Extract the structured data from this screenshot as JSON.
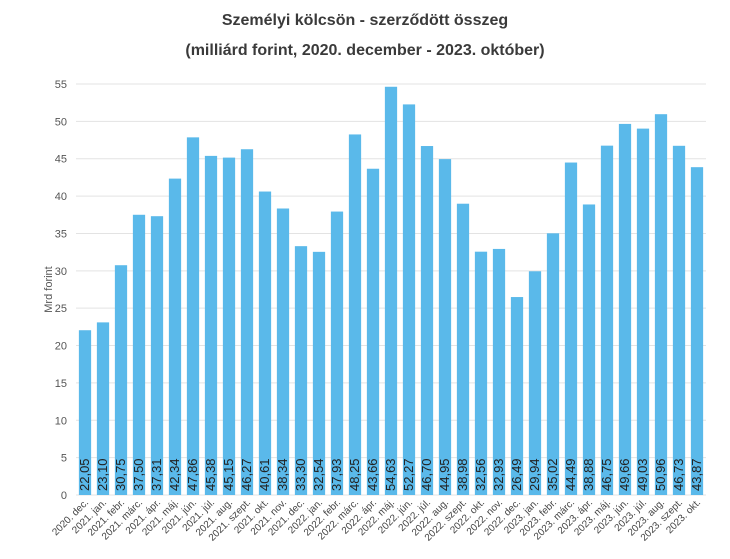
{
  "chart_data": {
    "type": "bar",
    "title_line1": "Személyi kölcsön - szerződött összeg",
    "title_line2": "(milliárd forint, 2020. december - 2023. október)",
    "xlabel": "",
    "ylabel": "Mrd forint",
    "ylim": [
      0,
      55
    ],
    "yticks": [
      "0",
      "5",
      "10",
      "15",
      "20",
      "25",
      "30",
      "35",
      "40",
      "45",
      "50",
      "55"
    ],
    "grid": "horizontal",
    "bar_color": "#5ab9ea",
    "categories": [
      "2020. dec.",
      "2021. jan.",
      "2021. febr.",
      "2021. márc.",
      "2021. ápr.",
      "2021. máj.",
      "2021. jún.",
      "2021. júl.",
      "2021. aug.",
      "2021. szept.",
      "2021. okt.",
      "2021. nov.",
      "2021. dec.",
      "2022. jan.",
      "2022. febr.",
      "2022. márc.",
      "2022. ápr.",
      "2022. máj.",
      "2022. jún.",
      "2022. júl.",
      "2022. aug.",
      "2022. szept.",
      "2022. okt.",
      "2022. nov.",
      "2022. dec.",
      "2023. jan.",
      "2023. febr.",
      "2023. márc.",
      "2023. ápr.",
      "2023. máj.",
      "2023. jún.",
      "2023. júl.",
      "2023. aug.",
      "2023. szept.",
      "2023. okt."
    ],
    "values": [
      22.05,
      23.1,
      30.75,
      37.5,
      37.31,
      42.34,
      47.86,
      45.38,
      45.15,
      46.27,
      40.61,
      38.34,
      33.3,
      32.54,
      37.93,
      48.25,
      43.66,
      54.63,
      52.27,
      46.7,
      44.95,
      38.98,
      32.56,
      32.93,
      26.49,
      29.94,
      35.02,
      44.49,
      38.88,
      46.75,
      49.66,
      49.03,
      50.96,
      46.73,
      43.87
    ],
    "data_labels": [
      "22,05",
      "23,10",
      "30,75",
      "37,50",
      "37,31",
      "42,34",
      "47,86",
      "45,38",
      "45,15",
      "46,27",
      "40,61",
      "38,34",
      "33,30",
      "32,54",
      "37,93",
      "48,25",
      "43,66",
      "54,63",
      "52,27",
      "46,70",
      "44,95",
      "38,98",
      "32,56",
      "32,93",
      "26,49",
      "29,94",
      "35,02",
      "44,49",
      "38,88",
      "46,75",
      "49,66",
      "49,03",
      "50,96",
      "46,73",
      "43,87"
    ]
  }
}
